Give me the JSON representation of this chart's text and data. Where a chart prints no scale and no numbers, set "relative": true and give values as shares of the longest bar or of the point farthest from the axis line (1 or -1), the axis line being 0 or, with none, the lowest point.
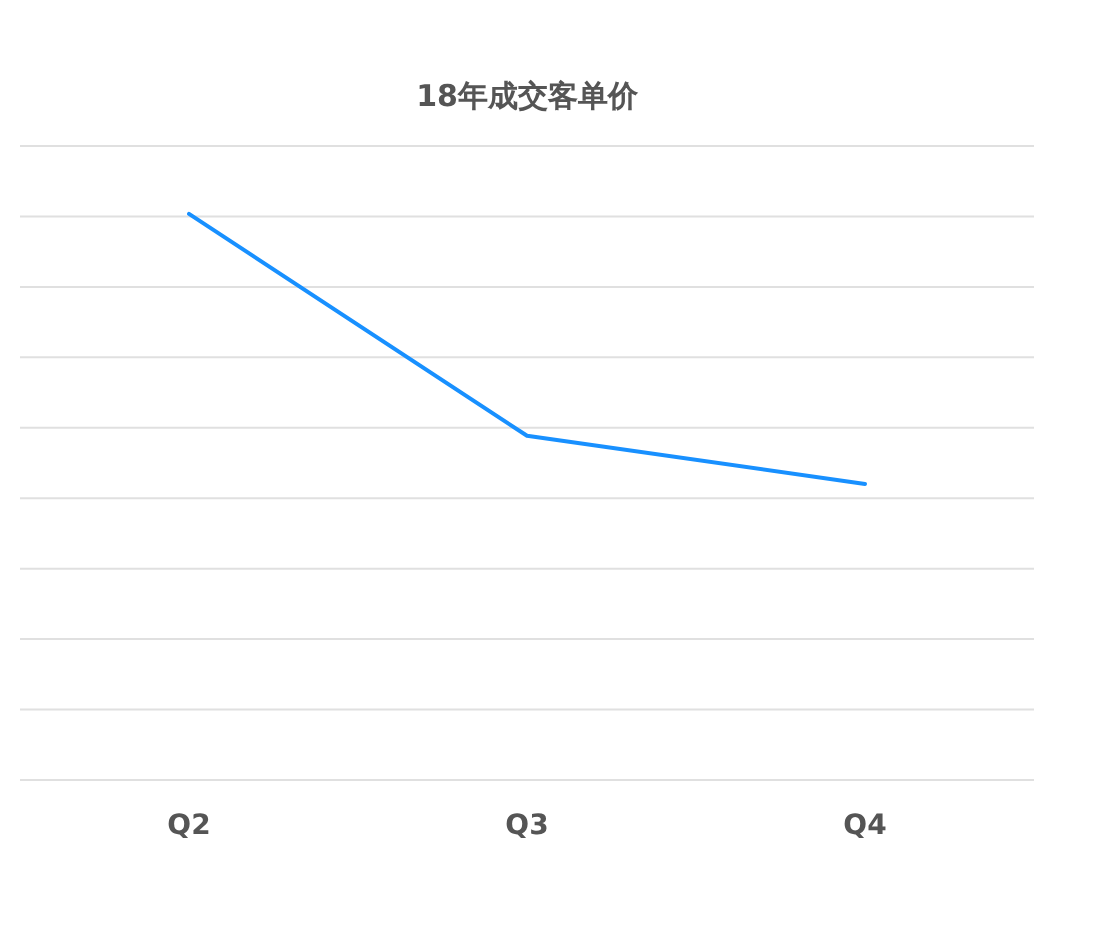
{
  "chart_data": {
    "type": "line",
    "title": "18年成交客单价",
    "categories": [
      "Q2",
      "Q3",
      "Q4"
    ],
    "relative": true,
    "grid": "y",
    "marker": "none",
    "line_style": "solid",
    "series": [
      {
        "color": "#1890ff",
        "values": [
          1,
          0.608,
          0.523
        ]
      }
    ]
  }
}
